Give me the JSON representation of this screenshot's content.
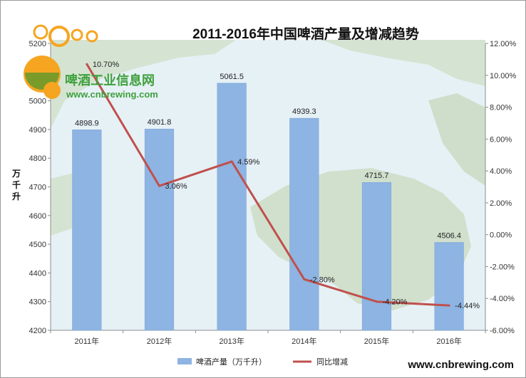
{
  "chart_data": {
    "type": "bar",
    "title": "2011-2016年中国啤酒产量及增减趋势",
    "ylabel": "万千升",
    "categories": [
      "2011年",
      "2012年",
      "2013年",
      "2014年",
      "2015年",
      "2016年"
    ],
    "series": [
      {
        "name": "啤酒产量（万千升）",
        "type": "bar",
        "axis": "left",
        "color": "#8DB4E2",
        "values": [
          4898.9,
          4901.8,
          5061.5,
          4939.3,
          4715.7,
          4506.4
        ],
        "labels": [
          "4898.9",
          "4901.8",
          "5061.5",
          "4939.3",
          "4715.7",
          "4506.4"
        ]
      },
      {
        "name": "同比增减",
        "type": "line",
        "axis": "right",
        "color": "#C0504D",
        "values": [
          10.7,
          3.06,
          4.59,
          -2.8,
          -4.2,
          -4.44
        ],
        "labels": [
          "10.70%",
          "3.06%",
          "4.59%",
          "-2.80%",
          "-4.20%",
          "-4.44%"
        ]
      }
    ],
    "ylim": [
      4200,
      5200
    ],
    "yticks": [
      "4200",
      "4300",
      "4400",
      "4500",
      "4600",
      "4700",
      "4800",
      "4900",
      "5000",
      "5100",
      "5200"
    ],
    "y2lim": [
      -6,
      12
    ],
    "y2ticks": [
      "-6.00%",
      "-4.00%",
      "-2.00%",
      "0.00%",
      "2.00%",
      "4.00%",
      "6.00%",
      "8.00%",
      "10.00%",
      "12.00%"
    ],
    "grid": false,
    "legend": "bottom"
  },
  "watermark": {
    "logo_text": "啤酒工业信息网",
    "logo_url": "www.cnbrewing.com",
    "footer": "www.cnbrewing.com"
  },
  "colors": {
    "map_water": "#E6F1F6",
    "map_land": "#CFDECB",
    "bar": "#8DB4E2",
    "line": "#C0504D"
  }
}
